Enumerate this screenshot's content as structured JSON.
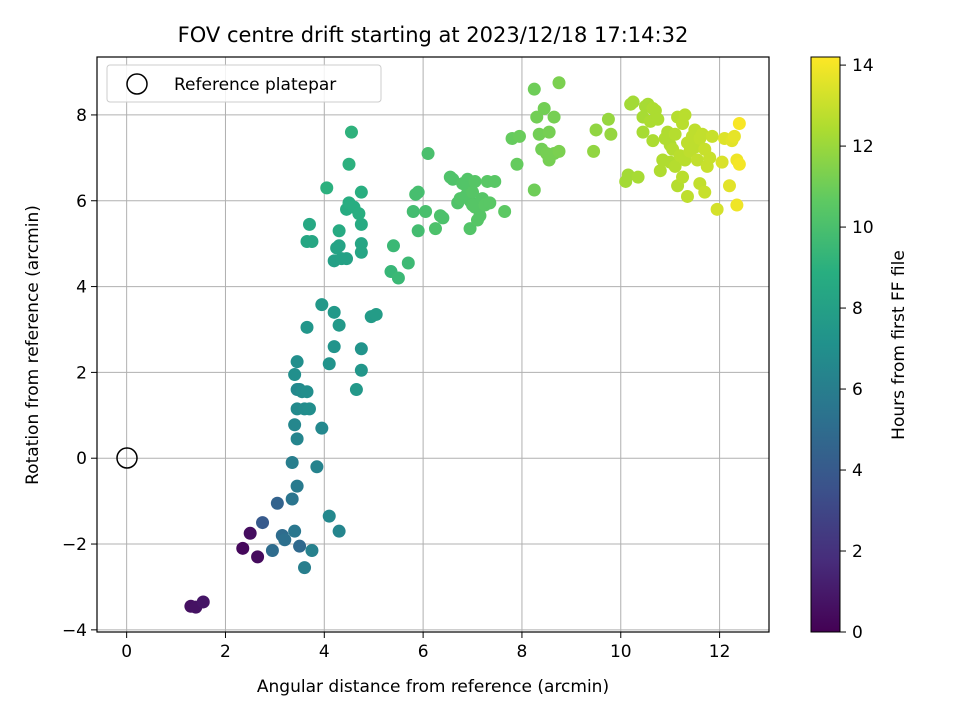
{
  "chart_data": {
    "type": "scatter",
    "title": "FOV centre drift starting at 2023/12/18 17:14:32",
    "xlabel": "Angular distance from reference (arcmin)",
    "ylabel": "Rotation from reference (arcmin)",
    "xlim": [
      -0.6,
      13.0
    ],
    "ylim": [
      -4.05,
      9.35
    ],
    "xticks": [
      0,
      2,
      4,
      6,
      8,
      10,
      12
    ],
    "yticks": [
      -4,
      -2,
      0,
      2,
      4,
      6,
      8
    ],
    "grid": true,
    "legend": {
      "position": "top-left",
      "entries": [
        "Reference platepar"
      ]
    },
    "reference_point": {
      "x": 0,
      "y": 0,
      "marker": "open-circle"
    },
    "colorbar": {
      "label": "Hours from first FF file",
      "min": 0,
      "max": 14.2,
      "ticks": [
        0,
        2,
        4,
        6,
        8,
        10,
        12,
        14
      ],
      "colormap": "viridis"
    },
    "points": [
      [
        1.3,
        -3.45,
        0.6
      ],
      [
        1.4,
        -3.47,
        0.7
      ],
      [
        1.55,
        -3.35,
        0.8
      ],
      [
        2.35,
        -2.1,
        0.3
      ],
      [
        2.5,
        -1.75,
        0.5
      ],
      [
        2.65,
        -2.3,
        0.4
      ],
      [
        2.75,
        -1.5,
        4.0
      ],
      [
        2.95,
        -2.15,
        5.0
      ],
      [
        3.05,
        -1.05,
        4.5
      ],
      [
        3.15,
        -1.8,
        5.0
      ],
      [
        3.2,
        -1.9,
        5.2
      ],
      [
        3.35,
        -0.95,
        5.5
      ],
      [
        3.4,
        -1.7,
        5.6
      ],
      [
        3.45,
        -0.65,
        5.8
      ],
      [
        3.5,
        -2.05,
        4.8
      ],
      [
        3.6,
        -2.55,
        6.0
      ],
      [
        3.75,
        -2.15,
        6.2
      ],
      [
        3.35,
        -0.1,
        6.0
      ],
      [
        3.85,
        -0.2,
        6.3
      ],
      [
        3.95,
        0.7,
        6.6
      ],
      [
        3.4,
        0.78,
        6.5
      ],
      [
        3.45,
        0.45,
        6.4
      ],
      [
        4.1,
        -1.35,
        6.6
      ],
      [
        4.3,
        -1.7,
        6.4
      ],
      [
        3.45,
        1.15,
        6.7
      ],
      [
        3.6,
        1.15,
        6.8
      ],
      [
        3.7,
        1.15,
        6.9
      ],
      [
        3.5,
        1.6,
        6.7
      ],
      [
        3.45,
        1.6,
        6.6
      ],
      [
        3.55,
        1.55,
        6.8
      ],
      [
        3.65,
        1.55,
        6.9
      ],
      [
        3.4,
        1.95,
        7.0
      ],
      [
        3.45,
        2.25,
        7.0
      ],
      [
        4.65,
        1.6,
        7.5
      ],
      [
        4.75,
        2.05,
        7.4
      ],
      [
        4.75,
        2.55,
        7.3
      ],
      [
        4.1,
        2.2,
        7.2
      ],
      [
        4.2,
        2.6,
        7.3
      ],
      [
        3.65,
        3.05,
        7.4
      ],
      [
        3.95,
        3.58,
        7.5
      ],
      [
        4.2,
        3.4,
        7.6
      ],
      [
        4.3,
        3.1,
        7.6
      ],
      [
        4.95,
        3.3,
        7.7
      ],
      [
        5.05,
        3.35,
        7.8
      ],
      [
        4.2,
        4.6,
        8.0
      ],
      [
        4.35,
        4.65,
        8.1
      ],
      [
        4.45,
        4.65,
        8.1
      ],
      [
        4.25,
        4.9,
        8.2
      ],
      [
        4.3,
        4.95,
        8.2
      ],
      [
        4.75,
        4.8,
        8.3
      ],
      [
        4.75,
        5.0,
        8.3
      ],
      [
        3.65,
        5.05,
        8.4
      ],
      [
        3.75,
        5.05,
        8.4
      ],
      [
        3.7,
        5.45,
        8.5
      ],
      [
        4.3,
        5.3,
        8.6
      ],
      [
        4.75,
        5.45,
        8.6
      ],
      [
        4.45,
        5.8,
        8.7
      ],
      [
        4.5,
        5.95,
        8.8
      ],
      [
        4.6,
        5.85,
        8.8
      ],
      [
        4.7,
        5.7,
        8.9
      ],
      [
        4.75,
        6.2,
        8.9
      ],
      [
        4.05,
        6.3,
        9.0
      ],
      [
        4.5,
        6.85,
        9.0
      ],
      [
        4.55,
        7.6,
        9.1
      ],
      [
        5.35,
        4.35,
        9.4
      ],
      [
        5.4,
        4.95,
        9.5
      ],
      [
        5.5,
        4.2,
        9.5
      ],
      [
        5.7,
        4.55,
        9.6
      ],
      [
        5.8,
        5.75,
        9.8
      ],
      [
        5.9,
        5.3,
        9.8
      ],
      [
        5.85,
        6.15,
        9.9
      ],
      [
        5.9,
        6.2,
        9.9
      ],
      [
        6.05,
        5.75,
        10.0
      ],
      [
        6.1,
        7.1,
        10.0
      ],
      [
        6.25,
        5.35,
        10.1
      ],
      [
        6.35,
        5.65,
        10.1
      ],
      [
        6.4,
        5.6,
        10.1
      ],
      [
        6.55,
        6.55,
        10.2
      ],
      [
        6.6,
        6.5,
        10.2
      ],
      [
        6.7,
        5.95,
        10.2
      ],
      [
        6.75,
        6.05,
        10.3
      ],
      [
        6.8,
        6.4,
        10.3
      ],
      [
        6.85,
        6.1,
        10.3
      ],
      [
        6.9,
        6.5,
        10.3
      ],
      [
        6.95,
        5.35,
        10.3
      ],
      [
        6.9,
        6.3,
        10.3
      ],
      [
        6.95,
        6.0,
        10.3
      ],
      [
        7.0,
        5.9,
        10.4
      ],
      [
        7.0,
        6.2,
        10.4
      ],
      [
        7.05,
        5.85,
        10.4
      ],
      [
        7.05,
        6.45,
        10.4
      ],
      [
        7.1,
        5.55,
        10.4
      ],
      [
        7.15,
        5.65,
        10.4
      ],
      [
        7.2,
        6.05,
        10.4
      ],
      [
        7.25,
        5.9,
        10.5
      ],
      [
        7.3,
        6.45,
        10.5
      ],
      [
        7.35,
        5.95,
        10.5
      ],
      [
        7.45,
        6.45,
        10.5
      ],
      [
        7.65,
        5.75,
        10.6
      ],
      [
        7.8,
        7.45,
        10.8
      ],
      [
        7.9,
        6.85,
        10.8
      ],
      [
        7.95,
        7.5,
        10.9
      ],
      [
        8.25,
        6.25,
        11.0
      ],
      [
        8.25,
        8.6,
        11.0
      ],
      [
        8.3,
        7.95,
        11.1
      ],
      [
        8.35,
        7.55,
        11.1
      ],
      [
        8.4,
        7.2,
        11.1
      ],
      [
        8.45,
        8.15,
        11.1
      ],
      [
        8.5,
        7.1,
        11.2
      ],
      [
        8.55,
        7.6,
        11.2
      ],
      [
        8.55,
        6.95,
        11.2
      ],
      [
        8.65,
        7.1,
        11.2
      ],
      [
        8.65,
        7.95,
        11.2
      ],
      [
        8.75,
        8.75,
        11.3
      ],
      [
        8.75,
        7.15,
        11.3
      ],
      [
        9.45,
        7.15,
        11.8
      ],
      [
        9.5,
        7.65,
        11.8
      ],
      [
        9.75,
        7.9,
        11.9
      ],
      [
        9.8,
        7.55,
        11.9
      ],
      [
        10.1,
        6.45,
        12.2
      ],
      [
        10.15,
        6.6,
        12.2
      ],
      [
        10.2,
        8.25,
        12.2
      ],
      [
        10.25,
        8.3,
        12.2
      ],
      [
        10.35,
        6.55,
        12.3
      ],
      [
        10.45,
        7.6,
        12.3
      ],
      [
        10.45,
        7.95,
        12.3
      ],
      [
        10.5,
        8.2,
        12.3
      ],
      [
        10.55,
        8.25,
        12.3
      ],
      [
        10.6,
        7.85,
        12.4
      ],
      [
        10.65,
        8.15,
        12.4
      ],
      [
        10.65,
        7.4,
        12.4
      ],
      [
        10.7,
        8.1,
        12.4
      ],
      [
        10.75,
        7.9,
        12.4
      ],
      [
        10.8,
        6.7,
        12.5
      ],
      [
        10.85,
        6.95,
        12.5
      ],
      [
        10.9,
        7.45,
        12.5
      ],
      [
        10.95,
        7.6,
        12.5
      ],
      [
        11.0,
        7.3,
        12.5
      ],
      [
        11.0,
        6.9,
        12.5
      ],
      [
        11.05,
        7.2,
        12.6
      ],
      [
        11.1,
        7.55,
        12.6
      ],
      [
        11.1,
        6.8,
        12.6
      ],
      [
        11.15,
        7.95,
        12.6
      ],
      [
        11.15,
        6.35,
        12.6
      ],
      [
        11.2,
        7.05,
        12.7
      ],
      [
        11.25,
        7.8,
        12.7
      ],
      [
        11.25,
        6.55,
        12.7
      ],
      [
        11.3,
        6.95,
        12.7
      ],
      [
        11.3,
        8.0,
        12.7
      ],
      [
        11.35,
        7.35,
        12.8
      ],
      [
        11.35,
        6.1,
        12.8
      ],
      [
        11.4,
        7.15,
        12.8
      ],
      [
        11.45,
        7.5,
        12.8
      ],
      [
        11.5,
        7.25,
        12.8
      ],
      [
        11.5,
        7.65,
        12.8
      ],
      [
        11.55,
        6.95,
        12.9
      ],
      [
        11.6,
        7.45,
        12.9
      ],
      [
        11.6,
        6.4,
        12.9
      ],
      [
        11.65,
        7.55,
        12.9
      ],
      [
        11.7,
        7.2,
        13.0
      ],
      [
        11.7,
        6.2,
        13.0
      ],
      [
        11.75,
        6.8,
        13.0
      ],
      [
        11.8,
        7.0,
        13.0
      ],
      [
        11.85,
        7.5,
        13.0
      ],
      [
        11.95,
        5.8,
        13.3
      ],
      [
        12.05,
        6.9,
        13.4
      ],
      [
        12.1,
        7.45,
        13.5
      ],
      [
        12.2,
        6.35,
        13.6
      ],
      [
        12.25,
        7.4,
        13.6
      ],
      [
        12.3,
        7.5,
        13.7
      ],
      [
        12.35,
        5.9,
        13.9
      ],
      [
        12.35,
        6.95,
        13.9
      ],
      [
        12.4,
        6.85,
        14.0
      ],
      [
        12.4,
        7.8,
        14.1
      ]
    ]
  }
}
